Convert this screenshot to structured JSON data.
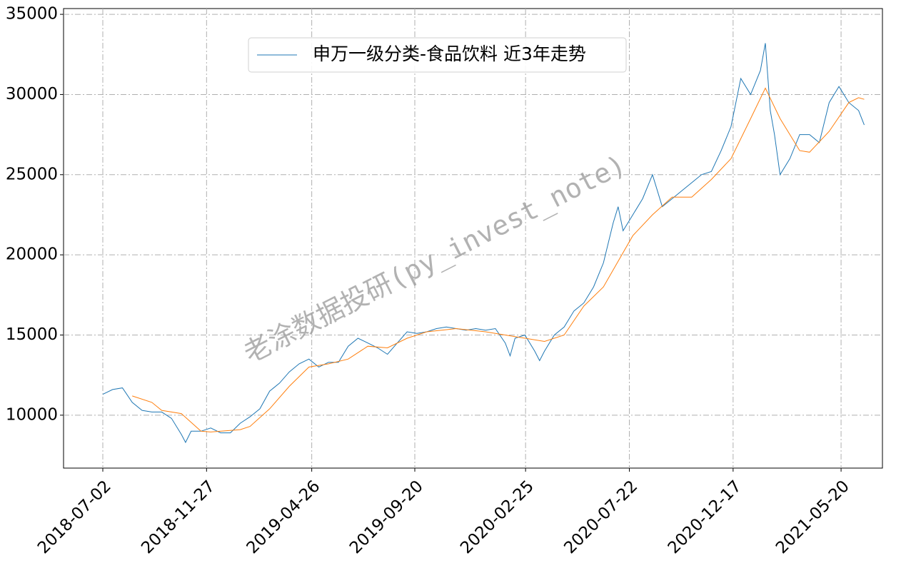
{
  "chart_data": {
    "type": "line",
    "watermark": "老涂数据投研(py_invest_note)",
    "xlim": [
      "2018-05-07",
      "2021-07-18"
    ],
    "xticks": [
      "2018-07-02",
      "2018-11-27",
      "2019-04-26",
      "2019-09-20",
      "2020-02-25",
      "2020-07-22",
      "2020-12-17",
      "2021-05-20"
    ],
    "ylim": [
      6700,
      35360
    ],
    "yticks": [
      10000,
      15000,
      20000,
      25000,
      30000,
      35000
    ],
    "grid": true,
    "legend": "upper center",
    "series": [
      {
        "name": "申万一级分类-食品饮料 近3年走势",
        "color": "#1f77b4",
        "x": [
          "2018-07-02",
          "2018-07-16",
          "2018-07-30",
          "2018-08-13",
          "2018-08-27",
          "2018-09-10",
          "2018-09-24",
          "2018-10-08",
          "2018-10-22",
          "2018-10-28",
          "2018-11-05",
          "2018-11-19",
          "2018-12-03",
          "2018-12-17",
          "2018-12-31",
          "2019-01-14",
          "2019-01-28",
          "2019-02-11",
          "2019-02-25",
          "2019-03-11",
          "2019-03-25",
          "2019-04-08",
          "2019-04-22",
          "2019-05-06",
          "2019-05-20",
          "2019-06-03",
          "2019-06-17",
          "2019-07-01",
          "2019-07-15",
          "2019-07-29",
          "2019-08-12",
          "2019-08-26",
          "2019-09-09",
          "2019-09-23",
          "2019-10-07",
          "2019-10-21",
          "2019-11-04",
          "2019-11-18",
          "2019-12-02",
          "2019-12-16",
          "2019-12-30",
          "2020-01-13",
          "2020-01-27",
          "2020-02-03",
          "2020-02-10",
          "2020-02-24",
          "2020-03-09",
          "2020-03-16",
          "2020-03-23",
          "2020-04-06",
          "2020-04-20",
          "2020-05-04",
          "2020-05-18",
          "2020-06-01",
          "2020-06-15",
          "2020-06-29",
          "2020-07-06",
          "2020-07-13",
          "2020-07-27",
          "2020-08-10",
          "2020-08-24",
          "2020-09-07",
          "2020-09-21",
          "2020-10-05",
          "2020-10-19",
          "2020-11-02",
          "2020-11-16",
          "2020-11-30",
          "2020-12-14",
          "2020-12-28",
          "2021-01-11",
          "2021-01-25",
          "2021-02-01",
          "2021-02-08",
          "2021-02-14",
          "2021-02-22",
          "2021-03-08",
          "2021-03-22",
          "2021-04-05",
          "2021-04-19",
          "2021-05-03",
          "2021-05-17",
          "2021-05-31",
          "2021-06-14",
          "2021-06-22"
        ],
        "values": [
          11300,
          11600,
          11700,
          10800,
          10300,
          10200,
          10200,
          9800,
          8800,
          8300,
          9000,
          9000,
          9200,
          8900,
          8900,
          9500,
          9900,
          10400,
          11500,
          12000,
          12700,
          13200,
          13500,
          13000,
          13300,
          13300,
          14300,
          14800,
          14500,
          14200,
          13800,
          14500,
          15200,
          15100,
          15200,
          15400,
          15500,
          15400,
          15300,
          15400,
          15300,
          15400,
          14500,
          13700,
          14800,
          15000,
          14000,
          13400,
          14000,
          15000,
          15500,
          16500,
          17000,
          18000,
          19500,
          22000,
          23000,
          21500,
          22500,
          23500,
          25000,
          23000,
          23500,
          24000,
          24500,
          25000,
          25200,
          26500,
          28000,
          31000,
          30000,
          31500,
          33200,
          29000,
          27500,
          25000,
          26000,
          27500,
          27500,
          27000,
          29500,
          30500,
          29500,
          29000,
          28100
        ]
      },
      {
        "color": "#ff7f0e",
        "x": [
          "2018-08-13",
          "2018-09-10",
          "2018-09-24",
          "2018-10-22",
          "2018-11-19",
          "2018-12-03",
          "2019-01-14",
          "2019-01-28",
          "2019-02-25",
          "2019-03-25",
          "2019-04-22",
          "2019-05-20",
          "2019-06-17",
          "2019-07-15",
          "2019-08-12",
          "2019-09-09",
          "2019-10-07",
          "2019-11-18",
          "2019-12-30",
          "2020-01-27",
          "2020-02-24",
          "2020-03-23",
          "2020-04-20",
          "2020-05-18",
          "2020-06-15",
          "2020-07-06",
          "2020-07-27",
          "2020-08-24",
          "2020-09-21",
          "2020-10-19",
          "2020-11-16",
          "2020-12-14",
          "2021-01-11",
          "2021-02-01",
          "2021-02-22",
          "2021-03-22",
          "2021-04-05",
          "2021-05-03",
          "2021-05-31",
          "2021-06-14",
          "2021-06-22"
        ],
        "values": [
          11200,
          10800,
          10300,
          10100,
          9000,
          8950,
          9100,
          9300,
          10400,
          11800,
          13000,
          13200,
          13500,
          14300,
          14200,
          14800,
          15200,
          15400,
          15200,
          15000,
          14800,
          14600,
          15000,
          16800,
          18000,
          19600,
          21200,
          22500,
          23600,
          23600,
          24700,
          26000,
          28500,
          30400,
          28500,
          26500,
          26400,
          27700,
          29500,
          29800,
          29700
        ]
      }
    ]
  }
}
